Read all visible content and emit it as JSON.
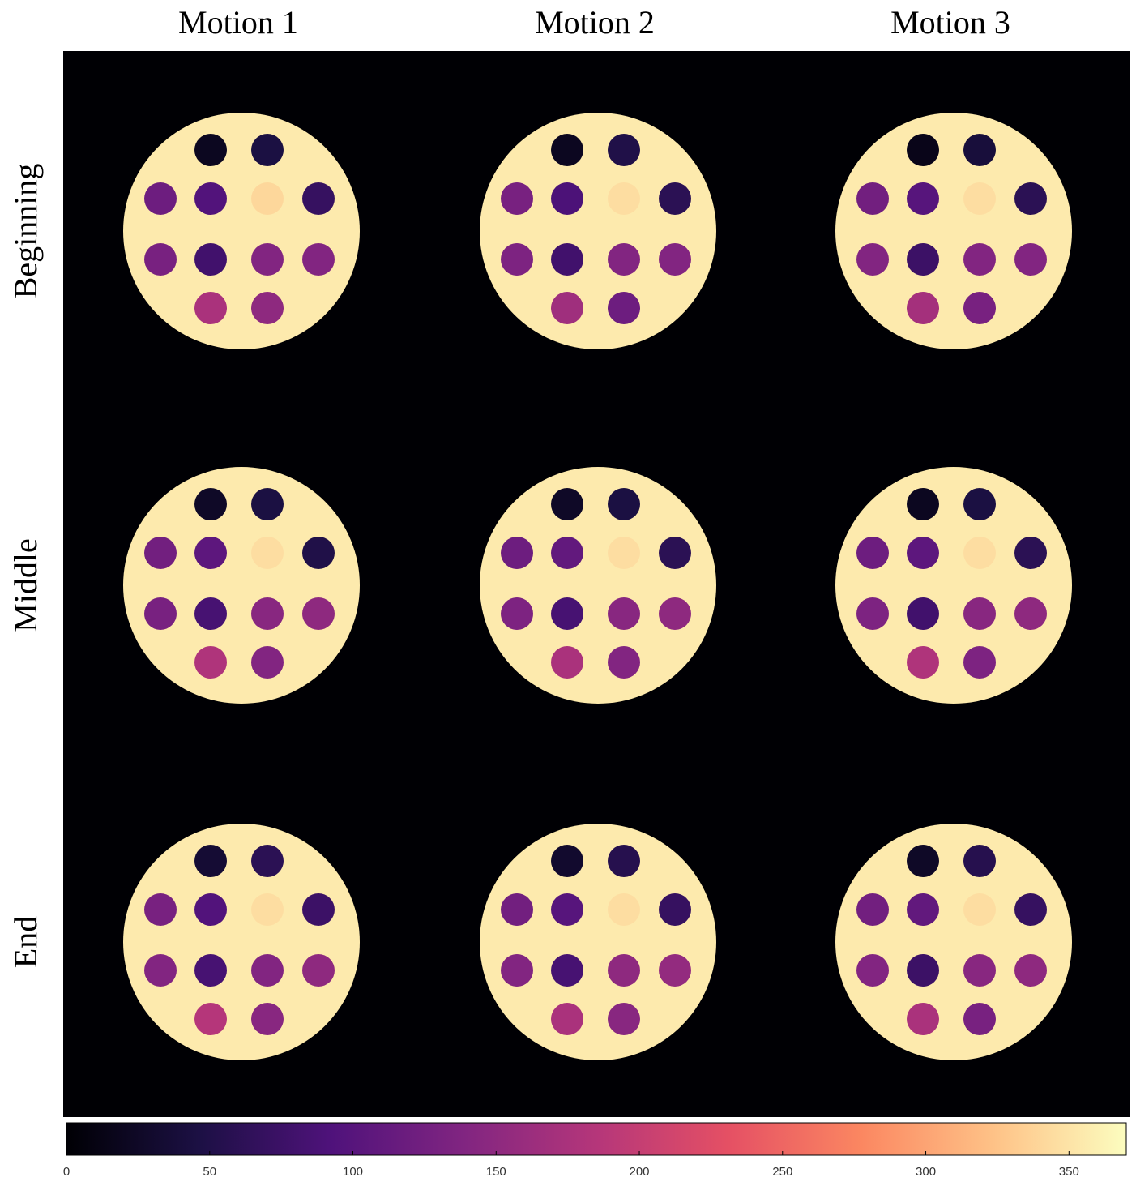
{
  "chart_data": {
    "type": "image-grid",
    "columns": [
      "Motion 1",
      "Motion 2",
      "Motion 3"
    ],
    "rows": [
      "Beginning",
      "Middle",
      "End"
    ],
    "colormap": "magma",
    "clim": [
      0,
      370
    ],
    "cticks": [
      0,
      50,
      100,
      150,
      200,
      250,
      300,
      350
    ],
    "background_value": 0,
    "phantom_value": 355,
    "vial_values": [
      [
        [
          20,
          45,
          120,
          95,
          340,
          70,
          130,
          80,
          140,
          140,
          175,
          150
        ],
        [
          20,
          50,
          130,
          90,
          345,
          60,
          135,
          80,
          140,
          140,
          165,
          120
        ],
        [
          15,
          40,
          125,
          100,
          345,
          60,
          140,
          75,
          140,
          140,
          170,
          130
        ]
      ],
      [
        [
          25,
          45,
          125,
          105,
          345,
          50,
          130,
          85,
          145,
          150,
          180,
          140
        ],
        [
          25,
          45,
          120,
          110,
          345,
          60,
          135,
          85,
          145,
          150,
          175,
          140
        ],
        [
          20,
          45,
          120,
          105,
          345,
          60,
          135,
          80,
          145,
          150,
          180,
          135
        ]
      ],
      [
        [
          35,
          60,
          130,
          95,
          345,
          75,
          140,
          85,
          140,
          150,
          185,
          145
        ],
        [
          30,
          55,
          125,
          100,
          345,
          70,
          140,
          85,
          150,
          155,
          175,
          145
        ],
        [
          25,
          55,
          125,
          110,
          345,
          70,
          140,
          75,
          145,
          150,
          175,
          130
        ]
      ]
    ]
  }
}
